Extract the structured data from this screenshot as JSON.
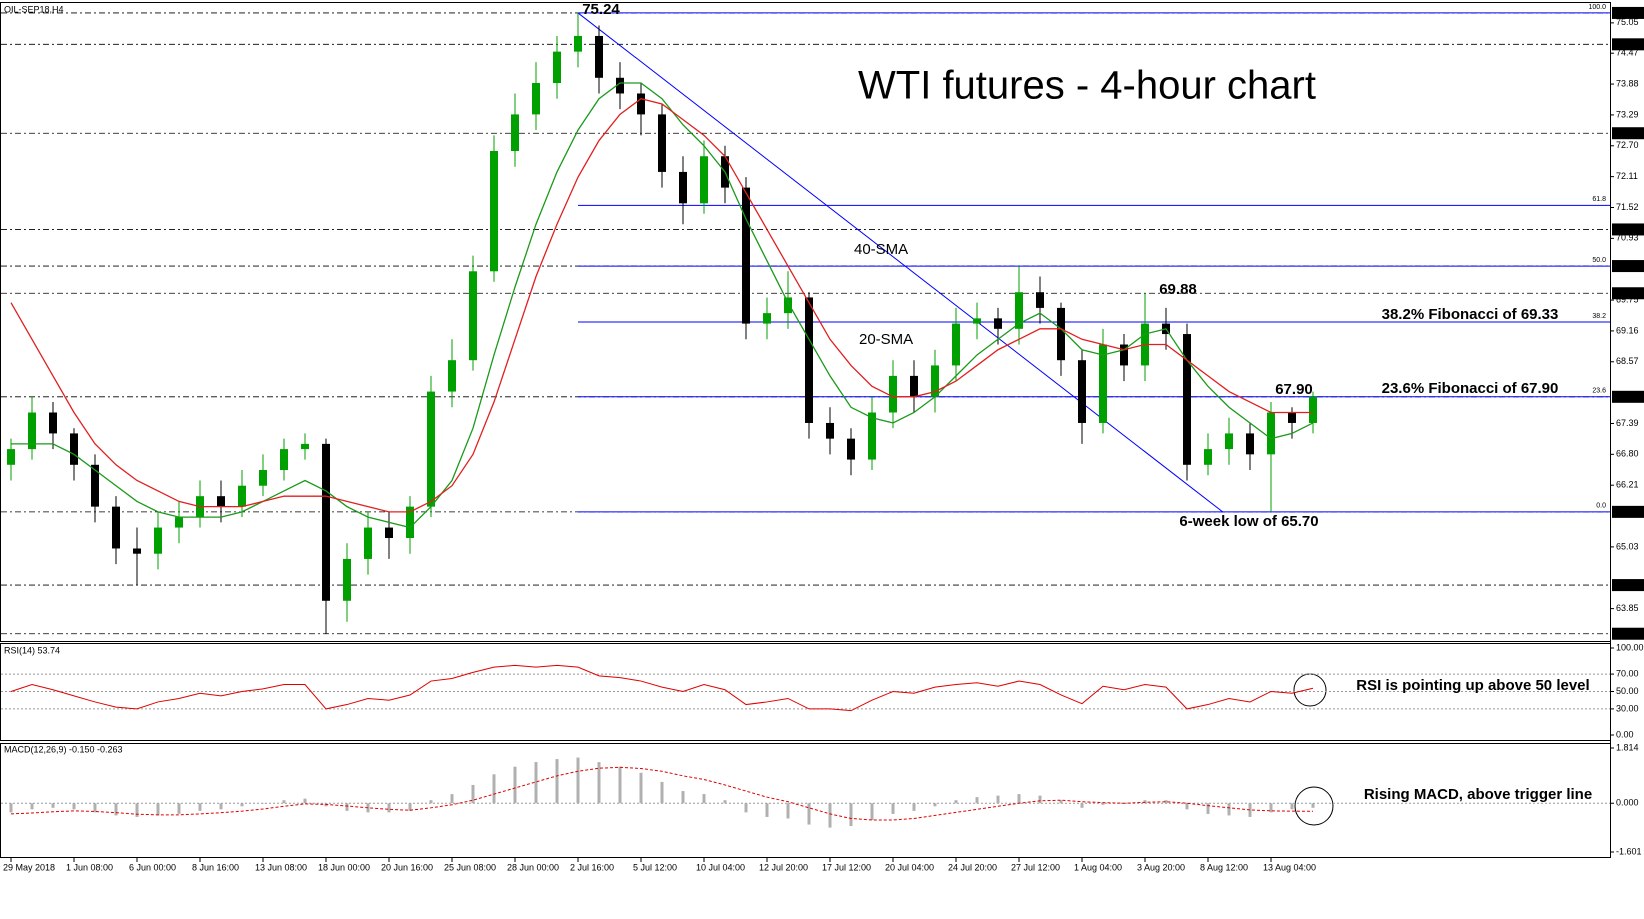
{
  "chart_data": [
    {
      "type": "candlestick",
      "title": "WTI futures - 4-hour chart",
      "symbol": "OIL-SEP18,H4",
      "categories": [
        "29 May 2018",
        null,
        null,
        "1 Jun 08:00",
        null,
        null,
        "6 Jun 00:00",
        null,
        null,
        "8 Jun 16:00",
        null,
        null,
        "13 Jun 08:00",
        null,
        null,
        "18 Jun 00:00",
        null,
        null,
        "20 Jun 16:00",
        null,
        null,
        "25 Jun 08:00",
        null,
        null,
        "28 Jun 00:00",
        null,
        null,
        "2 Jul 16:00",
        null,
        null,
        "5 Jul 12:00",
        null,
        null,
        "10 Jul 04:00",
        null,
        null,
        "12 Jul 20:00",
        null,
        null,
        "17 Jul 12:00",
        null,
        null,
        "20 Jul 04:00",
        null,
        null,
        "24 Jul 20:00",
        null,
        null,
        "27 Jul 12:00",
        null,
        null,
        "1 Aug 04:00",
        null,
        null,
        "3 Aug 20:00",
        null,
        null,
        "8 Aug 12:00",
        null,
        null,
        "13 Aug 04:00",
        null,
        null
      ],
      "open": [
        66.6,
        66.9,
        67.6,
        67.2,
        66.6,
        65.8,
        65.0,
        64.9,
        65.4,
        65.6,
        66.0,
        65.8,
        66.2,
        66.5,
        66.9,
        67.0,
        64.0,
        64.8,
        65.4,
        65.2,
        65.8,
        68.0,
        68.6,
        70.3,
        72.6,
        73.3,
        73.9,
        74.5,
        74.8,
        74.0,
        73.7,
        73.3,
        72.2,
        71.6,
        72.5,
        71.9,
        69.3,
        69.5,
        69.8,
        67.4,
        67.1,
        66.7,
        67.6,
        68.3,
        67.9,
        68.5,
        69.3,
        69.4,
        69.2,
        69.9,
        69.6,
        68.6,
        67.4,
        68.9,
        68.5,
        69.3,
        69.1,
        66.6,
        66.9,
        67.2,
        66.8,
        67.6,
        67.4
      ],
      "high": [
        67.1,
        67.9,
        67.8,
        67.3,
        66.8,
        66.0,
        65.4,
        65.7,
        65.9,
        66.3,
        66.3,
        66.5,
        66.8,
        67.1,
        67.2,
        67.1,
        65.1,
        65.7,
        65.7,
        66.0,
        68.3,
        69.0,
        70.6,
        72.9,
        73.7,
        74.3,
        74.8,
        75.24,
        75.0,
        74.3,
        73.9,
        73.5,
        72.5,
        72.8,
        72.7,
        72.1,
        69.8,
        70.3,
        69.9,
        67.7,
        67.3,
        67.9,
        68.6,
        68.6,
        68.8,
        69.6,
        69.7,
        69.6,
        70.4,
        70.2,
        69.7,
        68.8,
        69.2,
        69.1,
        69.88,
        69.6,
        69.3,
        67.2,
        67.5,
        67.4,
        67.8,
        67.7,
        68.0
      ],
      "low": [
        66.3,
        66.7,
        66.9,
        66.3,
        65.5,
        64.7,
        64.3,
        64.6,
        65.1,
        65.4,
        65.5,
        65.6,
        66.0,
        66.3,
        66.7,
        63.37,
        63.6,
        64.5,
        64.8,
        64.9,
        65.6,
        67.7,
        68.4,
        70.1,
        72.3,
        73.0,
        73.6,
        74.2,
        73.7,
        73.4,
        72.9,
        71.9,
        71.2,
        71.4,
        71.6,
        69.0,
        69.0,
        69.2,
        67.1,
        66.8,
        66.4,
        66.5,
        67.3,
        67.6,
        67.6,
        68.2,
        69.0,
        68.9,
        68.9,
        69.3,
        68.3,
        67.0,
        67.2,
        68.2,
        68.2,
        68.8,
        66.3,
        66.4,
        66.6,
        66.5,
        65.7,
        67.1,
        67.2
      ],
      "close": [
        66.9,
        67.6,
        67.2,
        66.6,
        65.8,
        65.0,
        64.9,
        65.4,
        65.6,
        66.0,
        65.8,
        66.2,
        66.5,
        66.9,
        67.0,
        64.0,
        64.8,
        65.4,
        65.2,
        65.8,
        68.0,
        68.6,
        70.3,
        72.6,
        73.3,
        73.9,
        74.5,
        74.8,
        74.0,
        73.7,
        73.3,
        72.2,
        71.6,
        72.5,
        71.9,
        69.3,
        69.5,
        69.8,
        67.4,
        67.1,
        66.7,
        67.6,
        68.3,
        67.9,
        68.5,
        69.3,
        69.4,
        69.2,
        69.9,
        69.6,
        68.6,
        67.4,
        68.9,
        68.5,
        69.3,
        69.1,
        66.6,
        66.9,
        67.2,
        66.8,
        67.6,
        67.4,
        67.9
      ],
      "up_color": "#00a000",
      "down_color": "#000000",
      "series": [
        {
          "name": "20-SMA",
          "color": "#1a9a1a",
          "values": [
            67.0,
            67.0,
            67.0,
            66.8,
            66.5,
            66.2,
            65.9,
            65.7,
            65.6,
            65.6,
            65.6,
            65.7,
            65.9,
            66.1,
            66.3,
            66.1,
            65.8,
            65.6,
            65.5,
            65.4,
            65.8,
            66.3,
            67.3,
            68.7,
            70.0,
            71.2,
            72.2,
            73.0,
            73.6,
            73.9,
            73.9,
            73.6,
            73.1,
            72.7,
            72.2,
            71.3,
            70.5,
            69.7,
            69.0,
            68.3,
            67.7,
            67.5,
            67.4,
            67.6,
            67.9,
            68.3,
            68.7,
            69.0,
            69.3,
            69.5,
            69.2,
            68.8,
            68.7,
            68.8,
            69.1,
            69.2,
            68.6,
            68.1,
            67.7,
            67.4,
            67.1,
            67.2,
            67.4
          ]
        },
        {
          "name": "40-SMA",
          "color": "#e02020",
          "values": [
            69.7,
            69.0,
            68.3,
            67.6,
            67.0,
            66.6,
            66.3,
            66.1,
            65.9,
            65.8,
            65.8,
            65.8,
            65.9,
            66.0,
            66.0,
            66.0,
            65.9,
            65.8,
            65.7,
            65.7,
            65.9,
            66.2,
            66.8,
            67.8,
            69.0,
            70.2,
            71.2,
            72.1,
            72.8,
            73.3,
            73.6,
            73.5,
            73.2,
            72.9,
            72.5,
            71.8,
            71.1,
            70.4,
            69.7,
            69.0,
            68.5,
            68.1,
            67.9,
            67.9,
            68.0,
            68.2,
            68.5,
            68.8,
            69.0,
            69.2,
            69.2,
            69.0,
            68.9,
            68.8,
            68.9,
            68.9,
            68.6,
            68.3,
            68.0,
            67.8,
            67.6,
            67.6,
            67.6
          ]
        }
      ],
      "ylim": [
        63.25,
        75.43
      ],
      "yticks": [
        {
          "value": 75.05,
          "label": "75.05"
        },
        {
          "value": 74.47,
          "label": "74.47"
        },
        {
          "value": 73.88,
          "label": "73.88"
        },
        {
          "value": 73.29,
          "label": "73.29"
        },
        {
          "value": 72.7,
          "label": "72.70"
        },
        {
          "value": 72.11,
          "label": "72.11"
        },
        {
          "value": 71.52,
          "label": "71.52"
        },
        {
          "value": 70.93,
          "label": "70.93"
        },
        {
          "value": 69.75,
          "label": "69.75"
        },
        {
          "value": 69.16,
          "label": "69.16"
        },
        {
          "value": 68.57,
          "label": "68.57"
        },
        {
          "value": 67.39,
          "label": "67.39"
        },
        {
          "value": 66.8,
          "label": "66.80"
        },
        {
          "value": 66.21,
          "label": "66.21"
        },
        {
          "value": 65.03,
          "label": "65.03"
        },
        {
          "value": 63.85,
          "label": "63.85"
        }
      ],
      "levels": [
        75.24,
        74.64,
        72.94,
        {
          "value": 71.1,
          "label": "71.10"
        },
        {
          "value": 70.4,
          "label": "70.40"
        },
        69.88,
        {
          "value": 67.9,
          "label": "67.90"
        },
        {
          "value": 65.7,
          "label": "65.70"
        },
        {
          "value": 64.3,
          "label": "64.30"
        },
        63.37
      ],
      "level_color": "#000000",
      "fibonacci": [
        {
          "value": 75.24,
          "label": "100.0"
        },
        {
          "value": 71.56,
          "label": "61.8"
        },
        {
          "value": 70.4,
          "label": "50.0"
        },
        {
          "value": 69.33,
          "label": "38.2"
        },
        {
          "value": 67.9,
          "label": "23.6"
        },
        {
          "value": 65.7,
          "label": "0.0"
        }
      ],
      "fib_color": "#0000ff",
      "annotations": [
        "38.2% Fibonacci of 69.33",
        "23.6% Fibonacci of 67.90",
        "6-week low of 65.70"
      ]
    },
    {
      "type": "rsi",
      "title": "RSI(14) 53.74",
      "color": "#e00000",
      "values": [
        50,
        58,
        52,
        45,
        38,
        32,
        30,
        38,
        42,
        48,
        45,
        50,
        53,
        58,
        58,
        30,
        35,
        42,
        40,
        46,
        62,
        65,
        72,
        78,
        80,
        78,
        80,
        78,
        68,
        66,
        62,
        55,
        50,
        58,
        52,
        35,
        38,
        42,
        30,
        30,
        28,
        40,
        50,
        48,
        55,
        58,
        60,
        56,
        62,
        58,
        46,
        36,
        56,
        52,
        58,
        55,
        30,
        35,
        42,
        38,
        50,
        48,
        53.74
      ],
      "ylim": [
        0,
        100
      ],
      "yticks": [
        {
          "value": 0,
          "label": "0.00"
        },
        {
          "value": 30,
          "label": "30.00"
        },
        {
          "value": 50,
          "label": "50.00"
        },
        {
          "value": 70,
          "label": "70.00"
        },
        {
          "value": 100,
          "label": "100.00"
        }
      ],
      "grid": [
        30,
        50,
        70
      ],
      "annotation": "RSI is pointing up above 50 level"
    },
    {
      "type": "macd",
      "title": "MACD(12,26,9) -0.150 -0.263",
      "hist_color": "#b0b0b0",
      "signal_color": "#e00000",
      "histogram": [
        -0.3,
        -0.2,
        -0.15,
        -0.2,
        -0.3,
        -0.4,
        -0.45,
        -0.4,
        -0.35,
        -0.25,
        -0.2,
        -0.1,
        0.0,
        0.1,
        0.15,
        -0.1,
        -0.25,
        -0.3,
        -0.3,
        -0.25,
        0.1,
        0.3,
        0.6,
        0.95,
        1.2,
        1.35,
        1.45,
        1.5,
        1.35,
        1.2,
        1.0,
        0.7,
        0.4,
        0.3,
        0.1,
        -0.3,
        -0.45,
        -0.5,
        -0.7,
        -0.8,
        -0.75,
        -0.55,
        -0.35,
        -0.25,
        -0.1,
        0.1,
        0.2,
        0.25,
        0.3,
        0.25,
        0.1,
        -0.15,
        -0.05,
        0.0,
        0.1,
        0.1,
        -0.2,
        -0.35,
        -0.4,
        -0.45,
        -0.3,
        -0.2,
        -0.15
      ],
      "signal": [
        -0.35,
        -0.32,
        -0.28,
        -0.25,
        -0.27,
        -0.31,
        -0.36,
        -0.38,
        -0.38,
        -0.35,
        -0.31,
        -0.26,
        -0.19,
        -0.1,
        -0.02,
        -0.04,
        -0.09,
        -0.15,
        -0.2,
        -0.23,
        -0.15,
        -0.05,
        0.1,
        0.3,
        0.5,
        0.7,
        0.9,
        1.05,
        1.15,
        1.18,
        1.14,
        1.05,
        0.9,
        0.78,
        0.6,
        0.4,
        0.2,
        0.05,
        -0.15,
        -0.35,
        -0.5,
        -0.55,
        -0.55,
        -0.5,
        -0.4,
        -0.3,
        -0.2,
        -0.1,
        0.0,
        0.08,
        0.1,
        0.05,
        0.02,
        0.0,
        0.03,
        0.05,
        0.0,
        -0.08,
        -0.15,
        -0.22,
        -0.25,
        -0.26,
        -0.263
      ],
      "ylim": [
        -1.601,
        1.814
      ],
      "yticks": [
        -1.601,
        {
          "value": 0,
          "label": "0.000"
        },
        1.814
      ],
      "annotation": "Rising MACD, above trigger line"
    }
  ]
}
